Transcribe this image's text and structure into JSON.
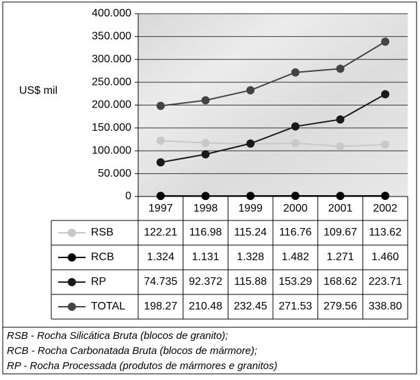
{
  "chart_data": {
    "type": "line",
    "y_label": "US$ mil",
    "categories": [
      "1997",
      "1998",
      "1999",
      "2000",
      "2001",
      "2002"
    ],
    "ylim": [
      0,
      400000
    ],
    "yticks": [
      0,
      {
        "value": 50000,
        "label": "50.000"
      },
      {
        "value": 100000,
        "label": "100.000"
      },
      {
        "value": 150000,
        "label": "150.000"
      },
      {
        "value": 200000,
        "label": "200.000"
      },
      {
        "value": 250000,
        "label": "250.000"
      },
      {
        "value": 300000,
        "label": "300.000"
      },
      {
        "value": 350000,
        "label": "350.000"
      },
      {
        "value": 400000,
        "label": "400.000"
      }
    ],
    "grid": true,
    "series": [
      {
        "name": "RSB",
        "color": "#c8c8c8",
        "values": [
          122210,
          116980,
          115240,
          116760,
          109670,
          113620
        ],
        "value_labels": [
          "122.21",
          "116.98",
          "115.24",
          "116.76",
          "109.67",
          "113.62"
        ]
      },
      {
        "name": "RCB",
        "color": "#000000",
        "values": [
          1324,
          1131,
          1328,
          1482,
          1271,
          1460
        ],
        "value_labels": [
          "1.324",
          "1.131",
          "1.328",
          "1.482",
          "1.271",
          "1.460"
        ]
      },
      {
        "name": "RP",
        "color": "#1a1a1a",
        "values": [
          74735,
          92372,
          115880,
          153290,
          168620,
          223710
        ],
        "value_labels": [
          "74.735",
          "92.372",
          "115.88",
          "153.29",
          "168.62",
          "223.71"
        ]
      },
      {
        "name": "TOTAL",
        "color": "#444444",
        "values": [
          198270,
          210480,
          232450,
          271530,
          279560,
          338800
        ],
        "value_labels": [
          "198.27",
          "210.48",
          "232.45",
          "271.53",
          "279.56",
          "338.80"
        ]
      }
    ],
    "notes": [
      "RSB - Rocha Silicática Bruta (blocos de granito);",
      "RCB - Rocha Carbonatada Bruta (blocos de mármore);",
      "RP - Rocha Processada (produtos de mármores e granitos)"
    ]
  }
}
